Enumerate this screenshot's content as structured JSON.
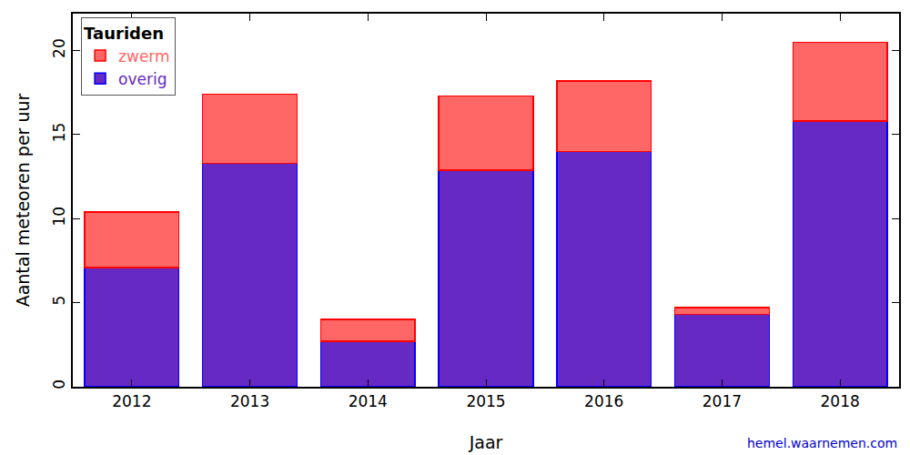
{
  "chart_data": {
    "type": "bar",
    "title": "Tauriden",
    "x_label": "Jaar",
    "y_label": "Aantal meteoren per uur",
    "source": "hemel.waarnemen.com",
    "categories": [
      "2012",
      "2013",
      "2014",
      "2015",
      "2016",
      "2017",
      "2018"
    ],
    "series": [
      {
        "name": "overig",
        "color": "#6629c4",
        "values": [
          7.1,
          13.3,
          2.7,
          12.9,
          14.0,
          4.3,
          15.8
        ]
      },
      {
        "name": "zwerm",
        "color": "#ff6666",
        "values": [
          3.3,
          4.1,
          1.3,
          4.4,
          4.2,
          0.4,
          4.7
        ]
      }
    ],
    "stacked": true,
    "ylim": [
      0,
      22.2
    ],
    "yticks": [
      0,
      5,
      10,
      15,
      20
    ],
    "legend": "upper left",
    "grid": false
  }
}
